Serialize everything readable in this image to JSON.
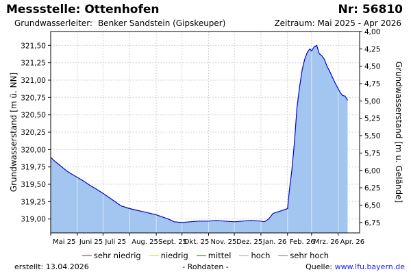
{
  "header": {
    "title": "Messstelle: Ottenhofen",
    "number": "Nr: 56810",
    "aquifer_label": "Grundwasserleiter:",
    "aquifer_value": "Benker Sandstein (Gipskeuper)",
    "period": "Zeitraum: Mai 2025 - Apr 2026"
  },
  "legend": {
    "items": [
      {
        "label": "sehr niedrig",
        "color": "#e00000"
      },
      {
        "label": "niedrig",
        "color": "#f0c800"
      },
      {
        "label": "mittel",
        "color": "#007a00"
      },
      {
        "label": "hoch",
        "color": "#a0a0a0"
      },
      {
        "label": "sehr hoch",
        "color": "#707070"
      }
    ]
  },
  "footer": {
    "created": "erstellt:  13.04.2026",
    "raw": "- Rohdaten -",
    "source_label": "Quelle:",
    "source_link": "www.lfu.bayern.de"
  },
  "chart_data": {
    "type": "area",
    "ylabel": "Grundwasserstand [m ü. NN]",
    "y2label": "Grundwasserstand [m u. Gelände]",
    "ylim": [
      318.8,
      321.7
    ],
    "y2lim": [
      6.9,
      4.0
    ],
    "yticks": [
      "321,50",
      "321,25",
      "321,00",
      "320,75",
      "320,50",
      "320,25",
      "320,00",
      "319,75",
      "319,50",
      "319,25",
      "319,00"
    ],
    "y2ticks": [
      "4,00",
      "4,25",
      "4,50",
      "4,75",
      "5,00",
      "5,25",
      "5,50",
      "5,75",
      "6,00",
      "6,25",
      "6,50",
      "6,75"
    ],
    "xticks": [
      "Mai 25",
      "Juni 25",
      "Juli 25",
      "Aug. 25",
      "Sept. 25",
      "Okt. 25",
      "Nov. 25",
      "Dez. 25",
      "Jan. 26",
      "Feb. 26",
      "Mrz. 26",
      "Apr. 26"
    ],
    "grid": true,
    "colors": {
      "line": "#0000cc",
      "fill": "#a3c6f0",
      "grid": "#d0d0d0"
    },
    "series": [
      {
        "x": [
          "2025-05-01",
          "2025-05-05",
          "2025-05-10",
          "2025-05-15",
          "2025-05-20",
          "2025-05-25",
          "2025-06-01",
          "2025-06-08",
          "2025-06-15",
          "2025-06-22",
          "2025-07-01",
          "2025-07-08",
          "2025-07-15",
          "2025-07-22",
          "2025-08-01",
          "2025-08-08",
          "2025-08-15",
          "2025-08-22",
          "2025-09-01",
          "2025-09-08",
          "2025-09-15",
          "2025-09-22",
          "2025-10-01",
          "2025-10-10",
          "2025-10-20",
          "2025-11-01",
          "2025-11-10",
          "2025-11-20",
          "2025-12-01",
          "2025-12-10",
          "2025-12-20",
          "2026-01-01",
          "2026-01-05",
          "2026-01-10",
          "2026-01-15",
          "2026-01-20",
          "2026-01-25",
          "2026-02-01",
          "2026-02-03",
          "2026-02-06",
          "2026-02-09",
          "2026-02-12",
          "2026-02-15",
          "2026-02-18",
          "2026-02-21",
          "2026-02-24",
          "2026-02-27",
          "2026-03-01",
          "2026-03-04",
          "2026-03-07",
          "2026-03-10",
          "2026-03-13",
          "2026-03-16",
          "2026-03-19",
          "2026-03-22",
          "2026-03-25",
          "2026-03-28",
          "2026-03-31",
          "2026-04-03",
          "2026-04-06",
          "2026-04-09",
          "2026-04-12"
        ],
        "y": [
          319.89,
          319.84,
          319.79,
          319.74,
          319.69,
          319.65,
          319.6,
          319.55,
          319.49,
          319.44,
          319.37,
          319.31,
          319.25,
          319.19,
          319.15,
          319.13,
          319.11,
          319.09,
          319.06,
          319.03,
          319.0,
          318.96,
          318.95,
          318.96,
          318.97,
          318.97,
          318.98,
          318.97,
          318.96,
          318.97,
          318.98,
          318.97,
          318.96,
          319.0,
          319.08,
          319.1,
          319.12,
          319.15,
          319.4,
          319.7,
          320.1,
          320.6,
          320.9,
          321.15,
          321.3,
          321.4,
          321.45,
          321.42,
          321.48,
          321.5,
          321.38,
          321.35,
          321.3,
          321.2,
          321.13,
          321.05,
          320.97,
          320.9,
          320.83,
          320.78,
          320.77,
          320.71
        ]
      }
    ]
  }
}
